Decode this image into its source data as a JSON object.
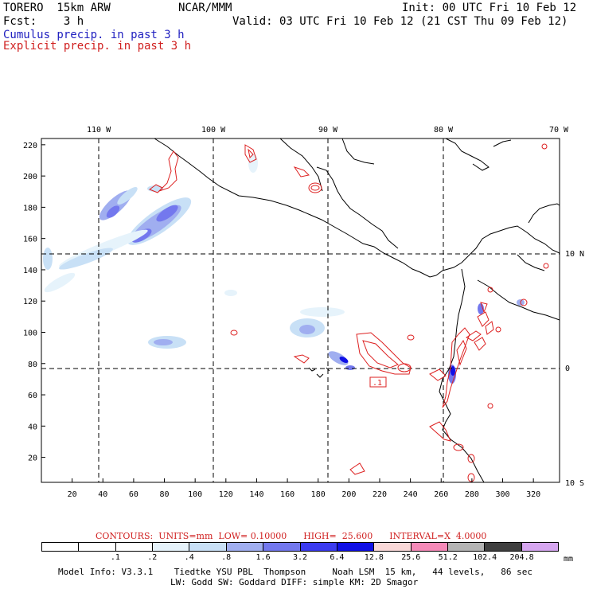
{
  "header": {
    "model": "TORERO  15km ARW",
    "org": "NCAR/MMM",
    "init": "Init: 00 UTC Fri 10 Feb 12",
    "fcst": "Fcst:    3 h",
    "valid": "Valid: 03 UTC Fri 10 Feb 12 (21 CST Thu 09 Feb 12)",
    "line_cumulus": "Cumulus precip. in past 3 h",
    "line_explicit": "Explicit precip. in past 3 h"
  },
  "map": {
    "lon_labels": [
      "110 W",
      "100 W",
      "90 W",
      "80 W",
      "70 W"
    ],
    "lat_labels": [
      "10 N",
      "0",
      "10 S"
    ],
    "x_ticks": [
      "20",
      "40",
      "60",
      "80",
      "100",
      "120",
      "140",
      "160",
      "180",
      "200",
      "220",
      "240",
      "260",
      "280",
      "300",
      "320"
    ],
    "y_ticks": [
      "220",
      "200",
      "180",
      "160",
      "140",
      "120",
      "100",
      "80",
      "60",
      "40",
      "20"
    ],
    "contour_box_label": ".1",
    "colors": {
      "coast": "#000000",
      "contour": "#dd2020",
      "grid": "#000000"
    }
  },
  "contour_info": "CONTOURS:  UNITS=mm  LOW= 0.10000      HIGH=  25.600      INTERVAL=X  4.0000",
  "legend": {
    "colors": [
      "#ffffff",
      "#ffffff",
      "#ffffff",
      "#e6f3fb",
      "#c8e0f6",
      "#a0aef0",
      "#7378ee",
      "#3b3bf0",
      "#1010e6",
      "#f9d8d8",
      "#f58ab8",
      "#b4b4b4",
      "#404040",
      "#d6a6f0"
    ],
    "labels": [
      ".1",
      ".2",
      ".4",
      ".8",
      "1.6",
      "3.2",
      "6.4",
      "12.8",
      "25.6",
      "51.2",
      "102.4",
      "204.8"
    ],
    "unit": "mm"
  },
  "footer": {
    "line1": "Model Info: V3.3.1    Tiedtke YSU PBL  Thompson     Noah LSM  15 km,   44 levels,   86 sec",
    "line2": "LW: Godd SW: Goddard DIFF: simple KM: 2D Smagor"
  }
}
